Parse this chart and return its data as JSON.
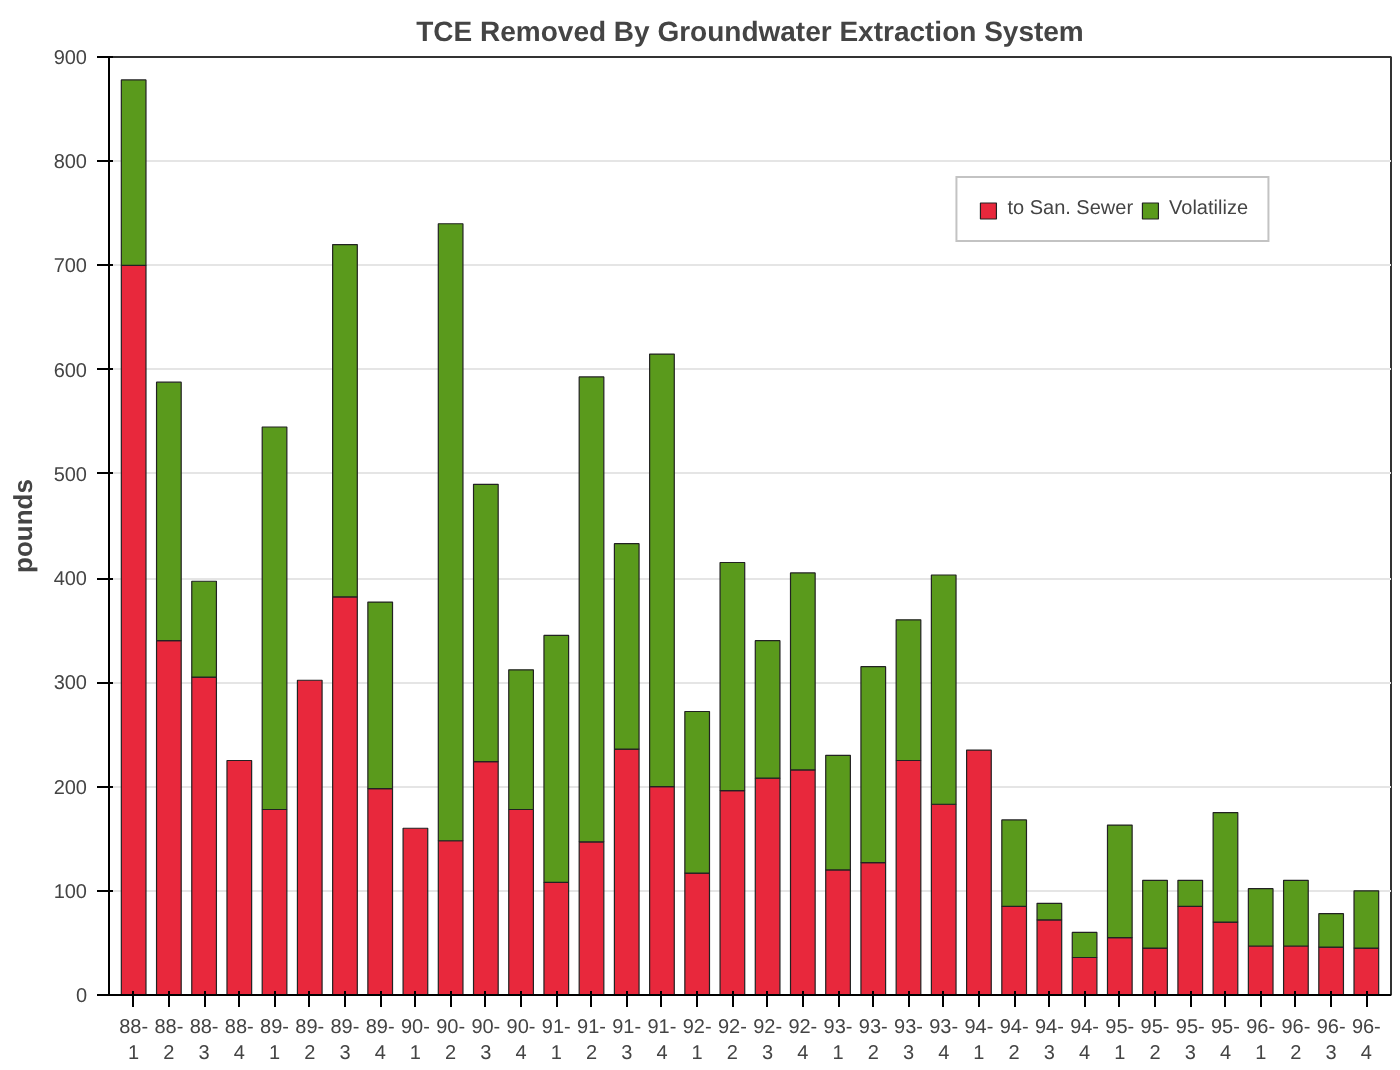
{
  "chart_data": {
    "type": "bar",
    "title": "TCE Removed By Groundwater Extraction System",
    "ylabel": "pounds",
    "stacked": true,
    "categories": [
      "88-\n1",
      "88-\n2",
      "88-\n3",
      "88-\n4",
      "89-\n1",
      "89-\n2",
      "89-\n3",
      "89-\n4",
      "90-\n1",
      "90-\n2",
      "90-\n3",
      "90-\n4",
      "91-\n1",
      "91-\n2",
      "91-\n3",
      "91-\n4",
      "92-\n1",
      "92-\n2",
      "92-\n3",
      "92-\n4",
      "93-\n1",
      "93-\n2",
      "93-\n3",
      "93-\n4",
      "94-\n1",
      "94-\n2",
      "94-\n3",
      "94-\n4",
      "95-\n1",
      "95-\n2",
      "95-\n3",
      "95-\n4",
      "96-\n1",
      "96-\n2",
      "96-\n3",
      "96-\n4"
    ],
    "series": [
      {
        "name": "to San. Sewer",
        "color": "#e8283c",
        "values": [
          700,
          340,
          305,
          225,
          178,
          302,
          382,
          198,
          160,
          148,
          224,
          178,
          108,
          147,
          236,
          200,
          117,
          196,
          208,
          216,
          120,
          127,
          225,
          183,
          235,
          85,
          72,
          36,
          55,
          45,
          85,
          70,
          47,
          47,
          46,
          45
        ]
      },
      {
        "name": "Volatilize",
        "color": "#5a9a1c",
        "values": [
          178,
          248,
          92,
          0,
          367,
          0,
          338,
          179,
          0,
          592,
          266,
          134,
          237,
          446,
          197,
          415,
          155,
          219,
          132,
          189,
          110,
          188,
          135,
          220,
          0,
          83,
          16,
          24,
          108,
          65,
          25,
          105,
          55,
          63,
          32,
          55
        ]
      }
    ],
    "ylim": [
      0,
      900
    ],
    "yticks": [
      0,
      100,
      200,
      300,
      400,
      500,
      600,
      700,
      800,
      900
    ],
    "grid": "y",
    "legend": "top right"
  }
}
